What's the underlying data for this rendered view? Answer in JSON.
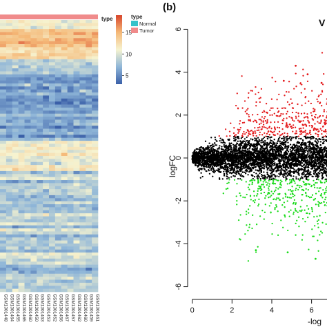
{
  "panel_b_label": "(b)",
  "volcano_title_fragment": "V",
  "chart_data": [
    {
      "type": "heatmap",
      "annotation_track_label": "type",
      "legend": {
        "title": "type",
        "entries": [
          {
            "name": "Normal",
            "color": "#35c2c9"
          },
          {
            "name": "Tumor",
            "color": "#f08b8b"
          }
        ]
      },
      "colorbar": {
        "ticks": [
          15,
          10,
          5
        ],
        "range": [
          3,
          19
        ],
        "colors": [
          "#3a5fa8",
          "#8fb6d8",
          "#f6f3d0",
          "#f5b978",
          "#d8452b"
        ]
      },
      "sample_labels": [
        "GSM1301448",
        "GSM1301464",
        "GSM1301455",
        "GSM1301465",
        "GSM1301460",
        "GSM1301450",
        "GSM1301463",
        "GSM1301453",
        "GSM1301452",
        "GSM1301456",
        "GSM1301467",
        "GSM1301457",
        "GSM1301462",
        "GSM1301460",
        "GSM1301459",
        "GSM1301461"
      ]
    },
    {
      "type": "scatter",
      "title": "",
      "xlabel": "-log",
      "ylabel": "logFC",
      "xlim": [
        -0.3,
        7.4
      ],
      "ylim": [
        -6.4,
        6.4
      ],
      "xticks": [
        0,
        2,
        4,
        6
      ],
      "yticks": [
        6,
        4,
        2,
        0,
        -2,
        -4,
        -6
      ],
      "threshold_line": {
        "y": 0,
        "style": "dashed"
      },
      "series": [
        {
          "color": "#e41a1c",
          "description_x_range": [
            0.5,
            7.4
          ],
          "y_range": [
            1,
            4.3
          ]
        },
        {
          "color": "#1adb1a",
          "description_x_range": [
            0.5,
            7.4
          ],
          "y_range": [
            -4.7,
            -1
          ]
        },
        {
          "color": "#000000",
          "description_x_range": [
            0,
            7.4
          ],
          "y_range": [
            -1,
            1
          ]
        }
      ],
      "highlight_points": [
        {
          "x": 5.2,
          "y": 4.3,
          "color": "#e41a1c"
        },
        {
          "x": 5.8,
          "y": 3.9,
          "color": "#e41a1c"
        },
        {
          "x": 4.6,
          "y": 3.6,
          "color": "#e41a1c"
        },
        {
          "x": 6.5,
          "y": 3.5,
          "color": "#e41a1c"
        },
        {
          "x": 3.2,
          "y": -4.3,
          "color": "#1adb1a"
        },
        {
          "x": 4.8,
          "y": -4.4,
          "color": "#1adb1a"
        },
        {
          "x": 6.2,
          "y": -4.7,
          "color": "#1adb1a"
        }
      ]
    }
  ]
}
